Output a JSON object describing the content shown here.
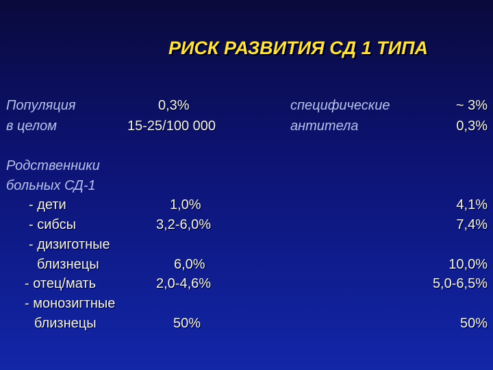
{
  "title": "РИСК РАЗВИТИЯ СД 1 ТИПА",
  "population": {
    "label1": "Популяция",
    "label2": "в целом",
    "value1": "0,3%",
    "value2": "15-25/100 000"
  },
  "antibodies": {
    "label1": "специфические",
    "label2": "антитела",
    "value1": "~ 3%",
    "value2": "0,3%"
  },
  "relatives": {
    "label1": "Родственники",
    "label2": "больных СД-1"
  },
  "rows": [
    {
      "label": "- дети",
      "value": "1,0%",
      "antibody_value": "4,1%"
    },
    {
      "label": "- сибсы",
      "value": "3,2-6,0%",
      "antibody_value": "7,4%"
    },
    {
      "label": "- дизиготные",
      "label2": "близнецы",
      "value": "6,0%",
      "antibody_value": "10,0%"
    },
    {
      "label": "- отец/мать",
      "value": "2,0-4,6%",
      "antibody_value": "5,0-6,5%"
    },
    {
      "label": "- монозигтные",
      "label2": "близнецы",
      "value": "50%",
      "antibody_value": "50%"
    }
  ],
  "colors": {
    "title": "#ffe14a",
    "label": "#b8c0ec",
    "value": "#f4f4f8"
  }
}
